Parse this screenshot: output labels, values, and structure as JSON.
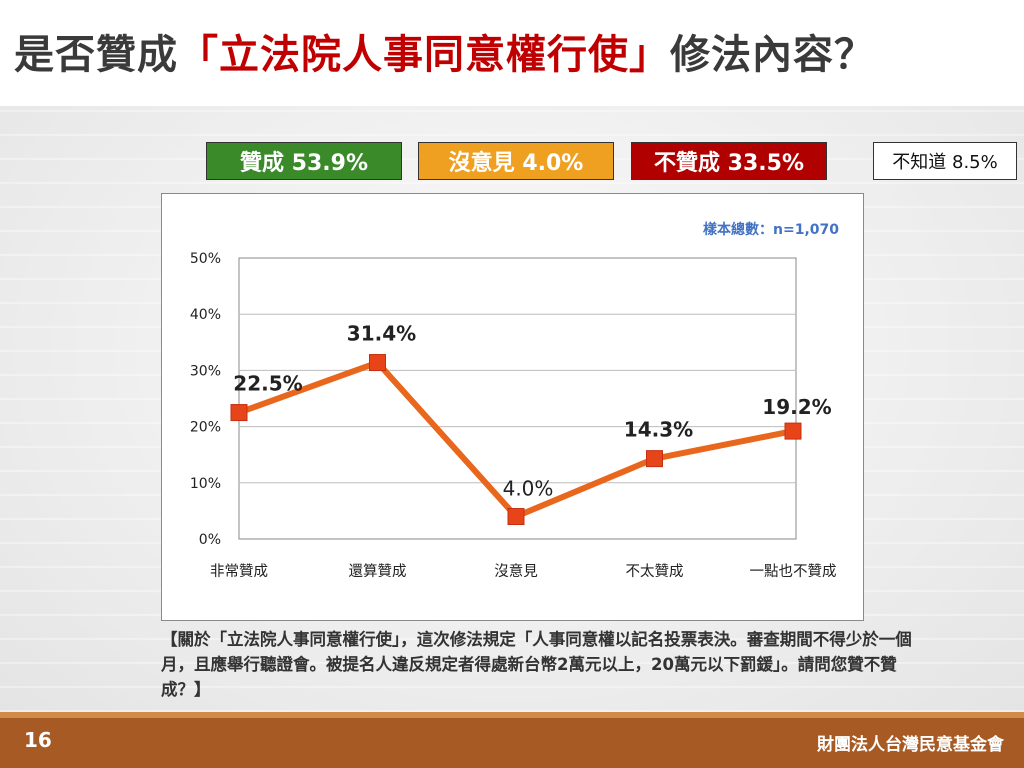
{
  "title": {
    "main": "是否贊成",
    "highlight": "「立法院人事同意權行使」",
    "tail": "修法內容？"
  },
  "summary": {
    "agree": "贊成 53.9%",
    "neutral": "沒意見 4.0%",
    "disagree": "不贊成 33.5%",
    "unknown": "不知道 8.5%"
  },
  "colors": {
    "agree": "#3a8a2a",
    "neutral": "#f0a020",
    "disagree": "#b00000",
    "line": "#e8671c",
    "title_highlight": "#c00000",
    "sample": "#4472c4"
  },
  "chart_data": {
    "type": "line",
    "categories": [
      "非常贊成",
      "還算贊成",
      "沒意見",
      "不太贊成",
      "一點也不贊成"
    ],
    "values": [
      22.5,
      31.4,
      4.0,
      14.3,
      19.2
    ],
    "data_labels": [
      "22.5%",
      "31.4%",
      "4.0%",
      "14.3%",
      "19.2%"
    ],
    "yticks": [
      "0%",
      "10%",
      "20%",
      "30%",
      "40%",
      "50%"
    ],
    "ylim": [
      0,
      50
    ],
    "grid": true,
    "sample_note": "樣本總數：n=1,070"
  },
  "question_note": "【關於「立法院人事同意權行使」，這次修法規定「人事同意權以記名投票表決。審查期間不得少於一個月，且應舉行聽證會。被提名人違反規定者得處新台幣2萬元以上，20萬元以下罰鍰」。請問您贊不贊成？】",
  "footer": {
    "page": "16",
    "org": "財團法人台灣民意基金會"
  }
}
